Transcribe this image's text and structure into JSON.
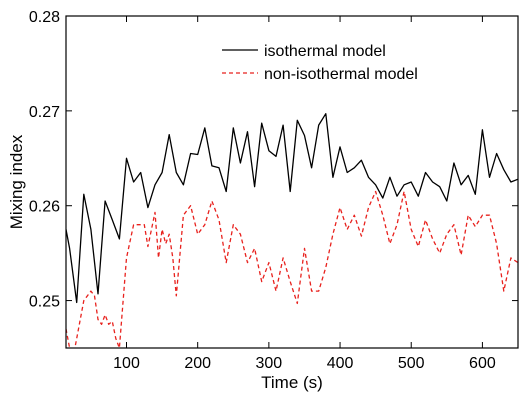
{
  "chart_data": {
    "type": "line",
    "xlabel": "Time (s)",
    "ylabel": "Mixing index",
    "xlim": [
      15,
      650
    ],
    "ylim": [
      0.245,
      0.28
    ],
    "xticks": [
      100,
      200,
      300,
      400,
      500,
      600
    ],
    "xtick_labels": [
      "100",
      "200",
      "300",
      "400",
      "500",
      "600"
    ],
    "yticks": [
      0.25,
      0.26,
      0.27,
      0.28
    ],
    "ytick_labels": [
      "0.25",
      "0.26",
      "0.27",
      "0.28"
    ],
    "grid": false,
    "legend_position": "top-right",
    "series": [
      {
        "name": "isothermal model",
        "color": "#000000",
        "dash": "solid",
        "x": [
          15,
          20,
          30,
          40,
          50,
          60,
          70,
          80,
          90,
          100,
          110,
          120,
          130,
          140,
          150,
          160,
          170,
          180,
          190,
          200,
          210,
          220,
          230,
          240,
          250,
          260,
          270,
          280,
          290,
          300,
          310,
          320,
          330,
          340,
          350,
          360,
          370,
          380,
          390,
          400,
          410,
          420,
          430,
          440,
          450,
          460,
          470,
          480,
          490,
          500,
          510,
          520,
          530,
          540,
          550,
          560,
          570,
          580,
          590,
          600,
          610,
          620,
          630,
          640,
          650
        ],
        "y": [
          0.2575,
          0.2555,
          0.2498,
          0.2612,
          0.2575,
          0.2507,
          0.2605,
          0.2585,
          0.2565,
          0.265,
          0.2625,
          0.2635,
          0.2598,
          0.2622,
          0.2635,
          0.2675,
          0.2635,
          0.2622,
          0.2655,
          0.2654,
          0.2682,
          0.2642,
          0.264,
          0.2615,
          0.2682,
          0.2645,
          0.2678,
          0.262,
          0.2687,
          0.2658,
          0.2652,
          0.2685,
          0.2615,
          0.269,
          0.2674,
          0.264,
          0.2685,
          0.2697,
          0.263,
          0.2662,
          0.2635,
          0.264,
          0.2648,
          0.263,
          0.2622,
          0.2608,
          0.263,
          0.261,
          0.2622,
          0.2625,
          0.261,
          0.2635,
          0.2625,
          0.262,
          0.2605,
          0.2645,
          0.2622,
          0.2632,
          0.2612,
          0.268,
          0.263,
          0.2655,
          0.2638,
          0.2625,
          0.2628
        ]
      },
      {
        "name": "non-isothermal model",
        "color": "#e8211d",
        "dash": "dashed",
        "x": [
          15,
          20,
          25,
          30,
          40,
          50,
          55,
          60,
          65,
          70,
          75,
          80,
          85,
          90,
          100,
          110,
          120,
          125,
          130,
          140,
          145,
          150,
          155,
          160,
          165,
          170,
          180,
          190,
          200,
          210,
          220,
          230,
          240,
          250,
          260,
          270,
          280,
          290,
          300,
          310,
          320,
          330,
          340,
          350,
          360,
          370,
          380,
          390,
          400,
          410,
          420,
          430,
          440,
          450,
          460,
          470,
          480,
          490,
          500,
          510,
          520,
          530,
          540,
          550,
          560,
          570,
          580,
          590,
          600,
          610,
          620,
          630,
          640,
          650
        ],
        "y": [
          0.247,
          0.245,
          0.244,
          0.246,
          0.25,
          0.251,
          0.2505,
          0.248,
          0.2475,
          0.2485,
          0.2475,
          0.2478,
          0.246,
          0.245,
          0.2545,
          0.258,
          0.258,
          0.258,
          0.2557,
          0.2593,
          0.2545,
          0.2575,
          0.256,
          0.257,
          0.2545,
          0.2505,
          0.259,
          0.26,
          0.257,
          0.258,
          0.2605,
          0.2585,
          0.254,
          0.258,
          0.257,
          0.254,
          0.2555,
          0.252,
          0.254,
          0.251,
          0.2545,
          0.252,
          0.2497,
          0.2555,
          0.251,
          0.251,
          0.2535,
          0.257,
          0.2598,
          0.2575,
          0.259,
          0.2568,
          0.2598,
          0.2615,
          0.259,
          0.256,
          0.258,
          0.2615,
          0.2575,
          0.2557,
          0.2585,
          0.2565,
          0.255,
          0.257,
          0.258,
          0.2548,
          0.259,
          0.2578,
          0.259,
          0.259,
          0.256,
          0.251,
          0.2545,
          0.254
        ]
      }
    ]
  }
}
